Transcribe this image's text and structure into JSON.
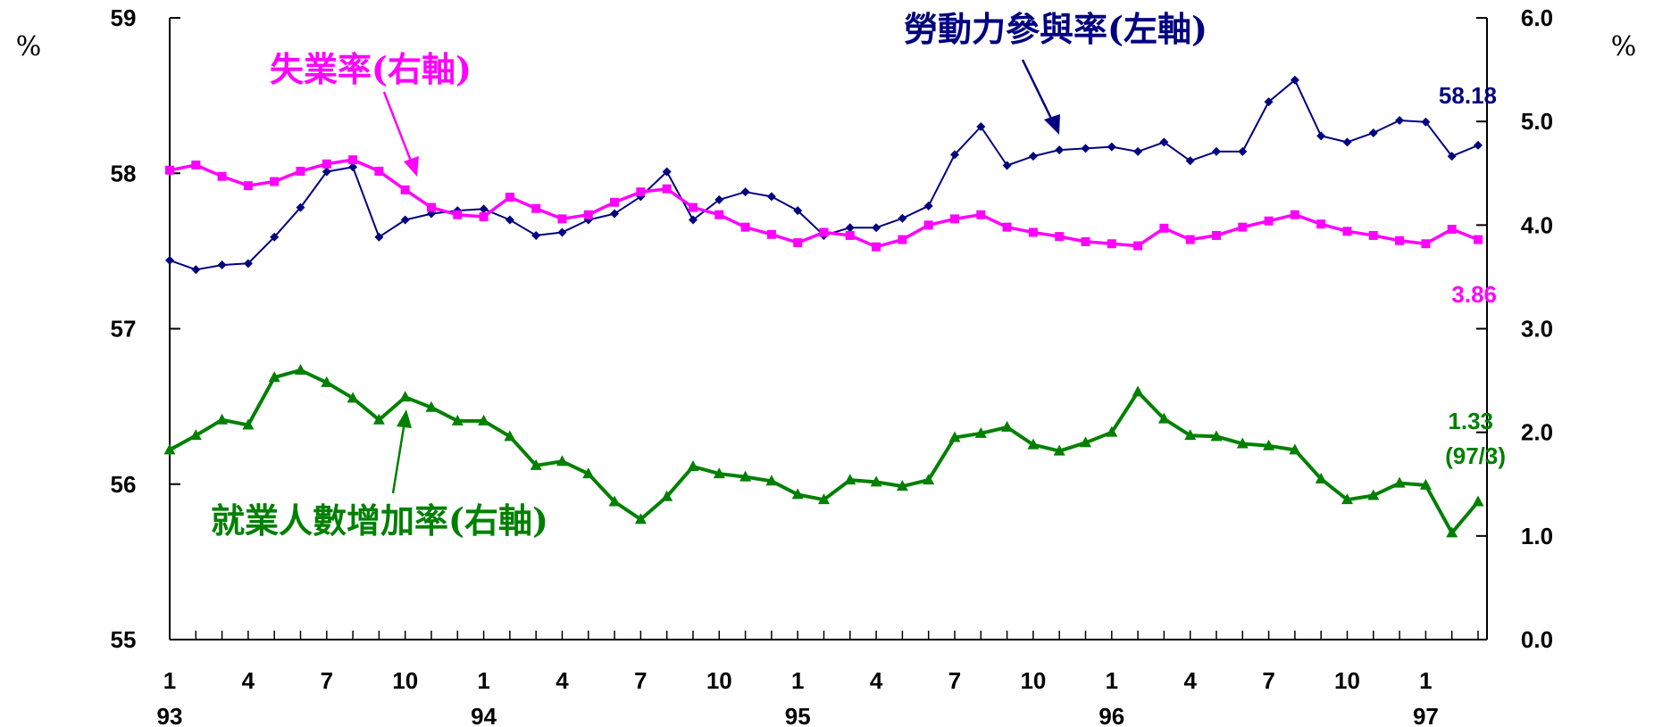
{
  "chart_data": {
    "type": "line",
    "x_ticks": [
      {
        "index": 0,
        "month": "1",
        "year": "93"
      },
      {
        "index": 3,
        "month": "4"
      },
      {
        "index": 6,
        "month": "7"
      },
      {
        "index": 9,
        "month": "10"
      },
      {
        "index": 12,
        "month": "1",
        "year": "94"
      },
      {
        "index": 15,
        "month": "4"
      },
      {
        "index": 18,
        "month": "7"
      },
      {
        "index": 21,
        "month": "10"
      },
      {
        "index": 24,
        "month": "1",
        "year": "95"
      },
      {
        "index": 27,
        "month": "4"
      },
      {
        "index": 30,
        "month": "7"
      },
      {
        "index": 33,
        "month": "10"
      },
      {
        "index": 36,
        "month": "1",
        "year": "96"
      },
      {
        "index": 39,
        "month": "4"
      },
      {
        "index": 42,
        "month": "7"
      },
      {
        "index": 45,
        "month": "10"
      },
      {
        "index": 48,
        "month": "1",
        "year": "97"
      }
    ],
    "left_axis": {
      "unit": "%",
      "ylim": [
        55,
        59
      ],
      "ticks": [
        "55",
        "56",
        "57",
        "58",
        "59"
      ]
    },
    "right_axis": {
      "unit": "%",
      "ylim": [
        0,
        6
      ],
      "ticks": [
        "0.0",
        "1.0",
        "2.0",
        "3.0",
        "4.0",
        "5.0",
        "6.0"
      ]
    },
    "grid": false,
    "series": [
      {
        "name": "勞動力參與率(左軸)",
        "axis": "left",
        "color": "#000080",
        "marker": "diamond",
        "end_label": "58.18",
        "values": [
          57.44,
          57.38,
          57.41,
          57.42,
          57.59,
          57.78,
          58.01,
          58.04,
          57.59,
          57.7,
          57.74,
          57.76,
          57.77,
          57.7,
          57.6,
          57.62,
          57.7,
          57.74,
          57.85,
          58.01,
          57.7,
          57.83,
          57.88,
          57.85,
          57.76,
          57.6,
          57.65,
          57.65,
          57.71,
          57.79,
          58.12,
          58.3,
          58.05,
          58.11,
          58.15,
          58.16,
          58.17,
          58.14,
          58.2,
          58.08,
          58.14,
          58.14,
          58.46,
          58.6,
          58.24,
          58.2,
          58.26,
          58.34,
          58.33,
          58.11,
          58.18
        ]
      },
      {
        "name": "失業率(右軸)",
        "axis": "right",
        "color": "#ff00ff",
        "marker": "square",
        "end_label": "3.86",
        "values": [
          4.53,
          4.58,
          4.47,
          4.38,
          4.42,
          4.52,
          4.59,
          4.63,
          4.52,
          4.34,
          4.17,
          4.1,
          4.08,
          4.27,
          4.16,
          4.06,
          4.1,
          4.22,
          4.32,
          4.35,
          4.17,
          4.1,
          3.98,
          3.91,
          3.83,
          3.93,
          3.9,
          3.79,
          3.86,
          4.0,
          4.06,
          4.1,
          3.98,
          3.93,
          3.89,
          3.84,
          3.82,
          3.8,
          3.97,
          3.86,
          3.9,
          3.98,
          4.04,
          4.1,
          4.01,
          3.94,
          3.9,
          3.85,
          3.82,
          3.96,
          3.86
        ]
      },
      {
        "name": "就業人數增加率(右軸)",
        "axis": "right",
        "color": "#008000",
        "marker": "triangle",
        "end_label": "1.33",
        "end_label_sub": "(97/3)",
        "values": [
          1.83,
          1.97,
          2.12,
          2.07,
          2.53,
          2.6,
          2.48,
          2.33,
          2.12,
          2.34,
          2.24,
          2.11,
          2.11,
          1.96,
          1.68,
          1.72,
          1.6,
          1.33,
          1.16,
          1.38,
          1.67,
          1.6,
          1.57,
          1.53,
          1.4,
          1.35,
          1.54,
          1.52,
          1.48,
          1.54,
          1.95,
          1.99,
          2.05,
          1.88,
          1.82,
          1.9,
          2.0,
          2.39,
          2.13,
          1.97,
          1.96,
          1.89,
          1.87,
          1.83,
          1.55,
          1.35,
          1.39,
          1.51,
          1.49,
          1.03,
          1.33
        ]
      }
    ]
  }
}
